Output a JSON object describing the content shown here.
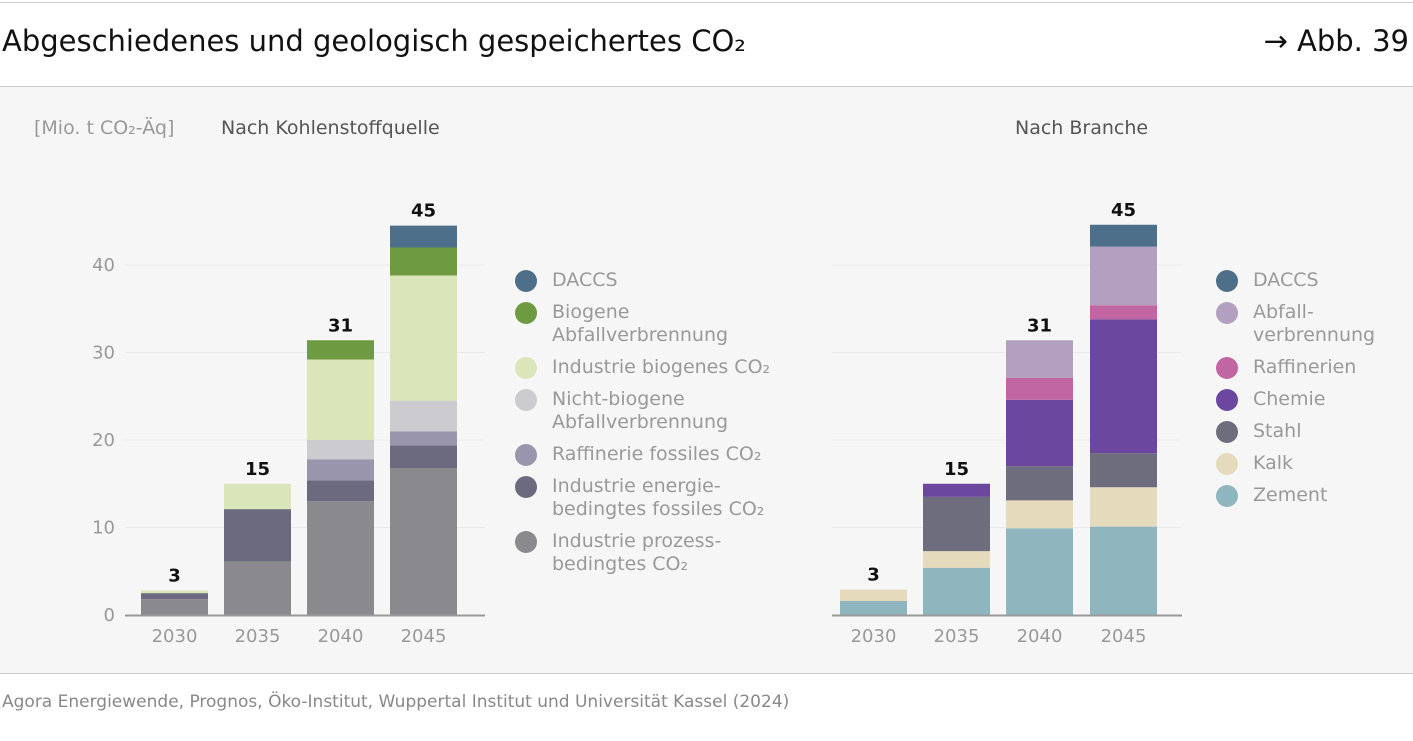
{
  "header": {
    "title": "Abgeschiedenes und geologisch gespeichertes CO₂",
    "reference": "→ Abb. 39"
  },
  "unit_label": "[Mio. t CO₂-Äq]",
  "source": "Agora Energiewende, Prognos, Öko-Institut, Wuppertal Institut und Universität Kassel (2024)",
  "chart_data": [
    {
      "type": "bar",
      "stacked": true,
      "title": "Nach Kohlenstoffquelle",
      "ylabel": "Mio. t CO₂-Äq",
      "ylim": [
        0,
        45
      ],
      "yticks": [
        0,
        10,
        20,
        30,
        40
      ],
      "categories": [
        "2030",
        "2035",
        "2040",
        "2045"
      ],
      "totals": [
        "3",
        "15",
        "31",
        "45"
      ],
      "series": [
        {
          "name": "Industrie prozess-bedingtes CO₂",
          "color": "#8a898e",
          "values": [
            1.8,
            6.1,
            13.0,
            16.8
          ]
        },
        {
          "name": "Industrie energie-bedingtes fossiles CO₂",
          "color": "#6b6a7f",
          "values": [
            0.7,
            6.0,
            2.4,
            2.6
          ]
        },
        {
          "name": "Raffinerie fossiles CO₂",
          "color": "#9995ad",
          "values": [
            0,
            0,
            2.4,
            1.6
          ]
        },
        {
          "name": "Nicht-biogene Abfallverbrennung",
          "color": "#cbcbd0",
          "values": [
            0,
            0,
            2.2,
            3.5
          ]
        },
        {
          "name": "Industrie biogenes CO₂",
          "color": "#dae6b9",
          "values": [
            0.3,
            2.9,
            9.2,
            14.3
          ]
        },
        {
          "name": "Biogene Abfallverbrennung",
          "color": "#6e9b42",
          "values": [
            0,
            0,
            2.2,
            3.2
          ]
        },
        {
          "name": "DACCS",
          "color": "#4e6f8a",
          "values": [
            0,
            0,
            0,
            2.5
          ]
        }
      ]
    },
    {
      "type": "bar",
      "stacked": true,
      "title": "Nach Branche",
      "ylim": [
        0,
        45
      ],
      "categories": [
        "2030",
        "2035",
        "2040",
        "2045"
      ],
      "totals": [
        "3",
        "15",
        "31",
        "45"
      ],
      "series": [
        {
          "name": "Zement",
          "color": "#8fb5bf",
          "values": [
            1.6,
            5.4,
            9.9,
            10.1
          ]
        },
        {
          "name": "Kalk",
          "color": "#e5dbbc",
          "values": [
            1.3,
            1.9,
            3.2,
            4.5
          ]
        },
        {
          "name": "Stahl",
          "color": "#6e6d7e",
          "values": [
            0,
            6.2,
            3.9,
            3.9
          ]
        },
        {
          "name": "Chemie",
          "color": "#6c47a0",
          "values": [
            0,
            1.5,
            7.6,
            15.3
          ]
        },
        {
          "name": "Raffinerien",
          "color": "#c166a2",
          "values": [
            0,
            0,
            2.5,
            1.6
          ]
        },
        {
          "name": "Abfall-verbrennung",
          "color": "#b3a0c0",
          "values": [
            0,
            0,
            4.3,
            6.7
          ]
        },
        {
          "name": "DACCS",
          "color": "#4e6f8a",
          "values": [
            0,
            0,
            0,
            2.5
          ]
        }
      ]
    }
  ]
}
